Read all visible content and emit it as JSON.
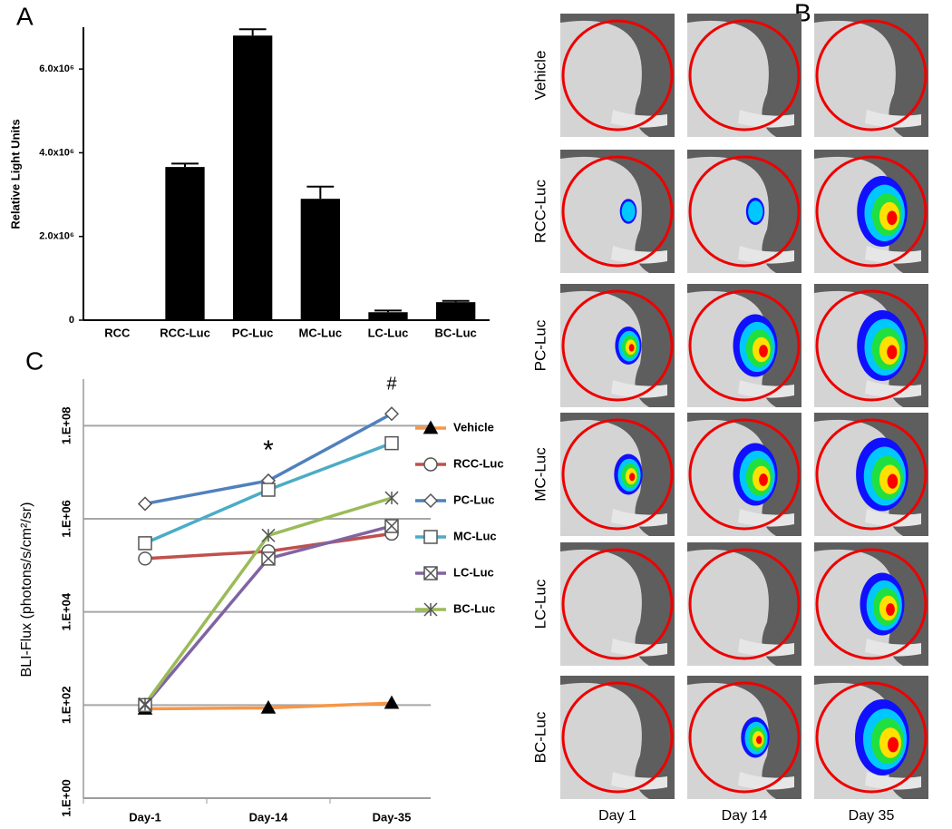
{
  "chart_data": [
    {
      "type": "bar",
      "label": "A",
      "ylabel": "Relative Light Units",
      "categories": [
        "RCC",
        "RCC-Luc",
        "PC-Luc",
        "MC-Luc",
        "LC-Luc",
        "BC-Luc"
      ],
      "values": [
        0,
        3660000,
        6800000,
        2900000,
        190000,
        430000
      ],
      "errors": [
        0,
        80000,
        150000,
        290000,
        40000,
        30000
      ],
      "color": "#000000",
      "ylim": [
        0,
        7000000
      ],
      "yticks": [
        0,
        {
          "value": 2000000,
          "label": "2.0x10⁶"
        },
        {
          "value": 4000000,
          "label": "4.0x10⁶"
        },
        {
          "value": 6000000,
          "label": "6.0x10⁶"
        }
      ]
    },
    {
      "type": "line",
      "label": "C",
      "ylabel": "BLI-Flux (photons/s/cm²/sr)",
      "log_scale": true,
      "grid": true,
      "categories": [
        "Day-1",
        "Day-14",
        "Day-35"
      ],
      "series": [
        {
          "name": "Vehicle",
          "color": "#f79646",
          "marker": "triangle",
          "marker_filled": true,
          "values": [
            83,
            87,
            110
          ]
        },
        {
          "name": "RCC-Luc",
          "color": "#c0504d",
          "marker": "circle",
          "marker_filled": false,
          "values": [
            140000,
            200000,
            480000
          ]
        },
        {
          "name": "PC-Luc",
          "color": "#4f81bd",
          "marker": "diamond",
          "marker_filled": false,
          "values": [
            2100000,
            6600000,
            180000000
          ]
        },
        {
          "name": "MC-Luc",
          "color": "#4bacc6",
          "marker": "square",
          "marker_filled": false,
          "values": [
            300000,
            4200000,
            42000000
          ]
        },
        {
          "name": "LC-Luc",
          "color": "#8064a2",
          "marker": "boxed-x",
          "marker_filled": false,
          "values": [
            100,
            140000,
            700000
          ]
        },
        {
          "name": "BC-Luc",
          "color": "#9bbb59",
          "marker": "asterisk",
          "marker_filled": false,
          "values": [
            105,
            440000,
            2800000
          ]
        }
      ],
      "annotations": [
        {
          "text": "*",
          "category": "Day-14"
        },
        {
          "text": "#",
          "category": "Day-35"
        }
      ],
      "ylim": [
        1,
        1000000000
      ],
      "yticks": [
        {
          "value": 1,
          "label": "1.E+00"
        },
        {
          "value": 100,
          "label": "1.E+02"
        },
        {
          "value": 10000,
          "label": "1.E+04"
        },
        {
          "value": 1000000,
          "label": "1.E+06"
        },
        {
          "value": 100000000,
          "label": "1.E+08"
        }
      ]
    }
  ],
  "image_panel": {
    "label": "B",
    "rows": [
      "Vehicle",
      "RCC-Luc",
      "PC-Luc",
      "MC-Luc",
      "LC-Luc",
      "BC-Luc"
    ],
    "columns": [
      "Day 1",
      "Day 14",
      "Day 35"
    ]
  }
}
